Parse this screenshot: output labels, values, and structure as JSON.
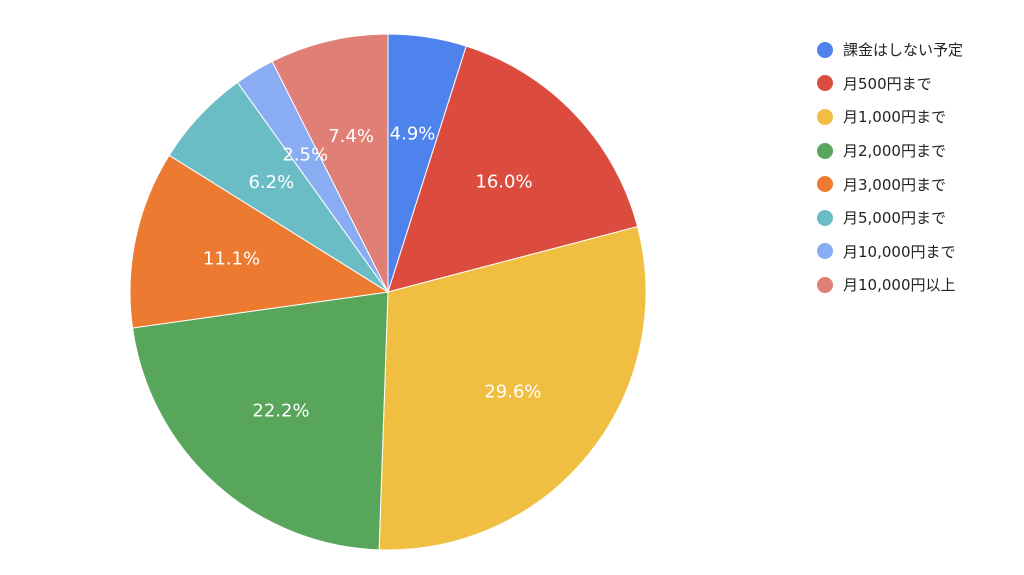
{
  "chart_data": {
    "type": "pie",
    "title": "",
    "legend_position": "right",
    "series": [
      {
        "values": [
          {
            "label": "課金はしない予定",
            "value": 4.9,
            "display": "4.9%",
            "color": "#4E83ED"
          },
          {
            "label": "月500円まで",
            "value": 16.0,
            "display": "16.0%",
            "color": "#DB4C3F"
          },
          {
            "label": "月1,000円まで",
            "value": 29.6,
            "display": "29.6%",
            "color": "#F0BE41"
          },
          {
            "label": "月2,000円まで",
            "value": 22.2,
            "display": "22.2%",
            "color": "#58A65B"
          },
          {
            "label": "月3,000円まで",
            "value": 11.1,
            "display": "11.1%",
            "color": "#EC7A31"
          },
          {
            "label": "月5,000円まで",
            "value": 6.2,
            "display": "6.2%",
            "color": "#6BBDC5"
          },
          {
            "label": "月10,000円まで",
            "value": 2.5,
            "display": "2.5%",
            "color": "#8AACF3"
          },
          {
            "label": "月10,000円以上",
            "value": 7.4,
            "display": "7.4%",
            "color": "#E07F76"
          }
        ]
      }
    ]
  }
}
